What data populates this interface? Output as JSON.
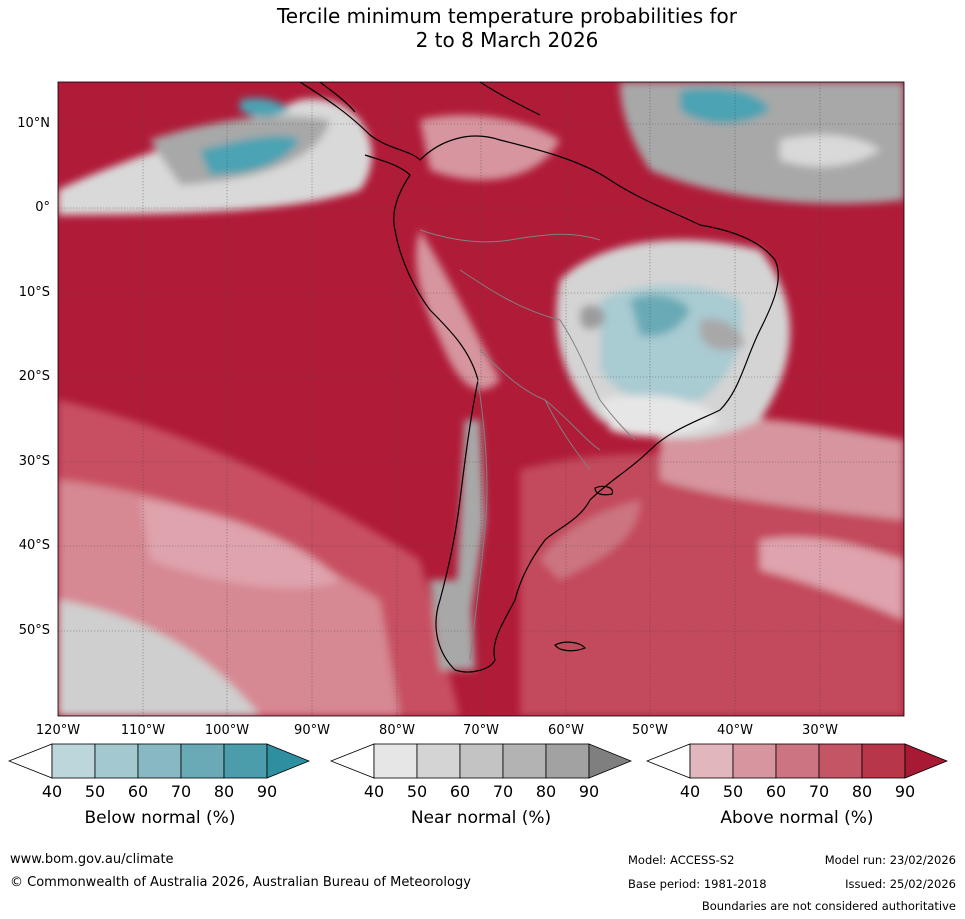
{
  "title": {
    "line1": "Tercile minimum temperature probabilities for",
    "line2": "2 to 8 March 2026"
  },
  "map": {
    "lat_labels": [
      "10°N",
      "0°",
      "10°S",
      "20°S",
      "30°S",
      "40°S",
      "50°S"
    ],
    "lon_labels": [
      "120°W",
      "110°W",
      "100°W",
      "90°W",
      "80°W",
      "70°W",
      "60°W",
      "50°W",
      "40°W",
      "30°W"
    ],
    "colors": {
      "above_dark": "#b01b38",
      "above_mid": "#c85062",
      "above_light": "#dfa3ad",
      "near": "#a8a8a8",
      "near_light": "#d4d4d4",
      "below": "#4ba3b3",
      "below_light": "#a9cbd2"
    }
  },
  "legends": {
    "below": {
      "title": "Below normal (%)",
      "ticks": [
        "40",
        "50",
        "60",
        "70",
        "80",
        "90"
      ],
      "colors": [
        "#bcd6db",
        "#a3c8cf",
        "#88b9c3",
        "#6aaab6",
        "#4b9dab",
        "#2e8fa0"
      ]
    },
    "near": {
      "title": "Near normal (%)",
      "ticks": [
        "40",
        "50",
        "60",
        "70",
        "80",
        "90"
      ],
      "colors": [
        "#e6e6e6",
        "#d4d4d4",
        "#c3c3c3",
        "#b3b3b3",
        "#a2a2a2",
        "#7f7f7f"
      ]
    },
    "above": {
      "title": "Above normal (%)",
      "ticks": [
        "40",
        "50",
        "60",
        "70",
        "80",
        "90"
      ],
      "colors": [
        "#e1b6bd",
        "#d6959f",
        "#cc7481",
        "#c35564",
        "#b83649",
        "#a81a34"
      ]
    }
  },
  "footer": {
    "website": "www.bom.gov.au/climate",
    "copyright": "© Commonwealth of Australia 2026, Australian Bureau of Meteorology",
    "model": "Model: ACCESS-S2",
    "model_run": "Model run: 23/02/2026",
    "base_period": "Base period: 1981-2018",
    "issued": "Issued: 25/02/2026",
    "boundaries": "Boundaries are not considered authoritative"
  }
}
